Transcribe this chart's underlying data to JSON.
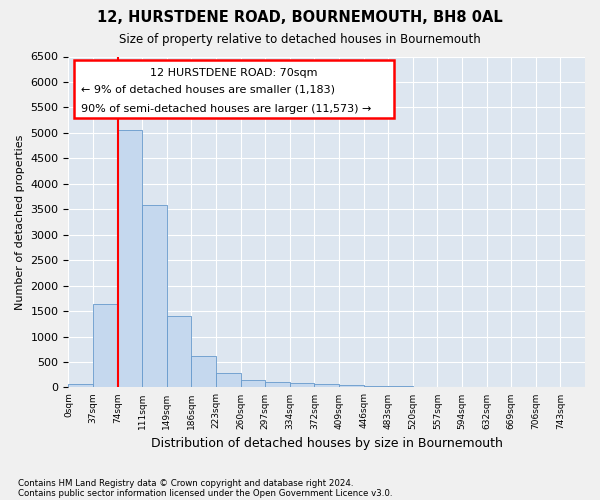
{
  "title": "12, HURSTDENE ROAD, BOURNEMOUTH, BH8 0AL",
  "subtitle": "Size of property relative to detached houses in Bournemouth",
  "xlabel": "Distribution of detached houses by size in Bournemouth",
  "ylabel": "Number of detached properties",
  "footnote1": "Contains HM Land Registry data © Crown copyright and database right 2024.",
  "footnote2": "Contains public sector information licensed under the Open Government Licence v3.0.",
  "annotation_line1": "12 HURSTDENE ROAD: 70sqm",
  "annotation_line2": "← 9% of detached houses are smaller (1,183)",
  "annotation_line3": "90% of semi-detached houses are larger (11,573) →",
  "bar_color": "#c5d8ee",
  "bar_edge_color": "#6699cc",
  "plot_bg_color": "#dde6f0",
  "fig_bg_color": "#f0f0f0",
  "grid_color": "#ffffff",
  "x_labels": [
    "0sqm",
    "37sqm",
    "74sqm",
    "111sqm",
    "149sqm",
    "186sqm",
    "223sqm",
    "260sqm",
    "297sqm",
    "334sqm",
    "372sqm",
    "409sqm",
    "446sqm",
    "483sqm",
    "520sqm",
    "557sqm",
    "594sqm",
    "632sqm",
    "669sqm",
    "706sqm",
    "743sqm"
  ],
  "bar_heights": [
    75,
    1630,
    5060,
    3580,
    1410,
    620,
    290,
    140,
    110,
    80,
    65,
    40,
    30,
    20,
    15,
    10,
    8,
    5,
    5,
    5,
    5
  ],
  "ylim": [
    0,
    6500
  ],
  "yticks": [
    0,
    500,
    1000,
    1500,
    2000,
    2500,
    3000,
    3500,
    4000,
    4500,
    5000,
    5500,
    6000,
    6500
  ],
  "red_line_x": 1.5,
  "annotation_title_fs": 8,
  "annotation_body_fs": 8
}
